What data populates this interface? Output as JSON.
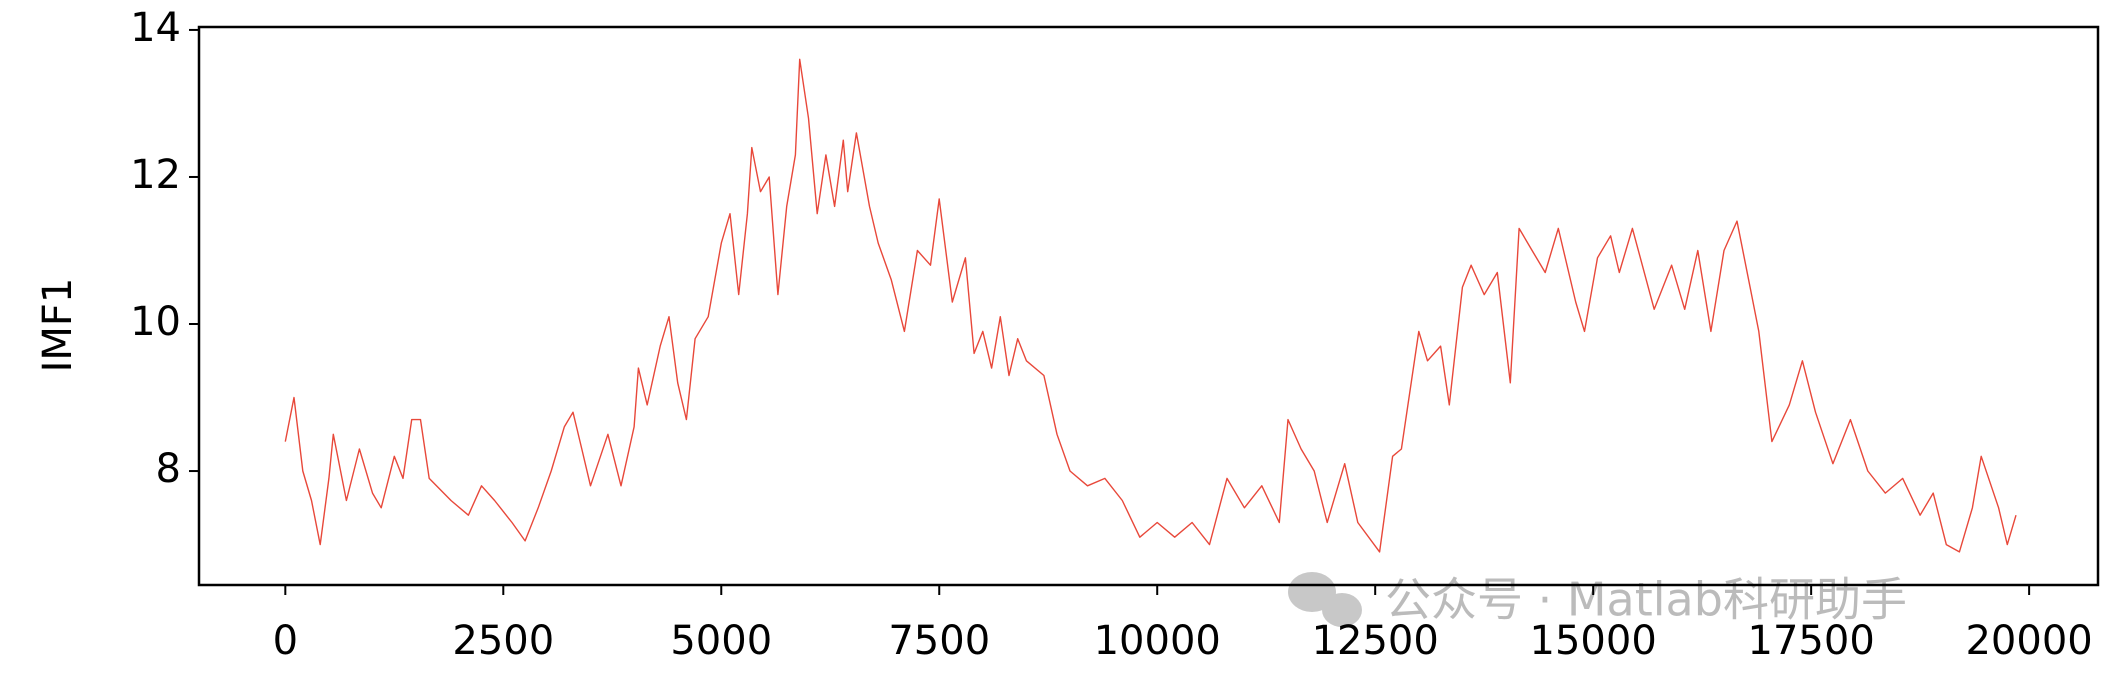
{
  "chart_data": {
    "type": "line",
    "y_label": "IMF1",
    "watermark": "公众号 · Matlab科研助手",
    "color": "#e8483a",
    "xlim": [
      -990,
      20790
    ],
    "ylim": [
      6.45,
      14.04
    ],
    "xticks": [
      0,
      2500,
      5000,
      7500,
      10000,
      12500,
      15000,
      17500,
      20000
    ],
    "yticks": [
      8,
      10,
      12,
      14
    ],
    "x": [
      0,
      100,
      200,
      300,
      400,
      500,
      550,
      700,
      850,
      1000,
      1100,
      1250,
      1350,
      1450,
      1550,
      1650,
      1900,
      2100,
      2250,
      2400,
      2600,
      2750,
      2900,
      3050,
      3200,
      3300,
      3400,
      3500,
      3700,
      3850,
      4000,
      4050,
      4150,
      4300,
      4400,
      4500,
      4600,
      4700,
      4850,
      5000,
      5100,
      5200,
      5300,
      5350,
      5450,
      5550,
      5650,
      5750,
      5850,
      5900,
      6000,
      6100,
      6200,
      6300,
      6400,
      6450,
      6550,
      6700,
      6800,
      6950,
      7100,
      7250,
      7400,
      7500,
      7650,
      7800,
      7900,
      8000,
      8100,
      8200,
      8300,
      8400,
      8500,
      8700,
      8850,
      9000,
      9200,
      9400,
      9600,
      9800,
      10000,
      10200,
      10400,
      10600,
      10800,
      11000,
      11200,
      11400,
      11500,
      11650,
      11800,
      11950,
      12150,
      12300,
      12550,
      12700,
      12800,
      13000,
      13100,
      13250,
      13350,
      13500,
      13600,
      13750,
      13900,
      14050,
      14150,
      14300,
      14450,
      14600,
      14800,
      14900,
      15050,
      15200,
      15300,
      15450,
      15700,
      15900,
      16050,
      16200,
      16350,
      16500,
      16650,
      16800,
      16900,
      17050,
      17250,
      17400,
      17550,
      17750,
      17950,
      18150,
      18350,
      18550,
      18750,
      18900,
      19050,
      19200,
      19350,
      19450,
      19650,
      19750,
      19850
    ],
    "values": [
      8.4,
      9.0,
      8.0,
      7.6,
      7.0,
      7.9,
      8.5,
      7.6,
      8.3,
      7.7,
      7.5,
      8.2,
      7.9,
      8.7,
      8.7,
      7.9,
      7.6,
      7.4,
      7.8,
      7.6,
      7.3,
      7.05,
      7.5,
      8.0,
      8.6,
      8.8,
      8.3,
      7.8,
      8.5,
      7.8,
      8.6,
      9.4,
      8.9,
      9.7,
      10.1,
      9.2,
      8.7,
      9.8,
      10.1,
      11.1,
      11.5,
      10.4,
      11.5,
      12.4,
      11.8,
      12.0,
      10.4,
      11.6,
      12.3,
      13.6,
      12.8,
      11.5,
      12.3,
      11.6,
      12.5,
      11.8,
      12.6,
      11.6,
      11.1,
      10.6,
      9.9,
      11.0,
      10.8,
      11.7,
      10.3,
      10.9,
      9.6,
      9.9,
      9.4,
      10.1,
      9.3,
      9.8,
      9.5,
      9.3,
      8.5,
      8.0,
      7.8,
      7.9,
      7.6,
      7.1,
      7.3,
      7.1,
      7.3,
      7.0,
      7.9,
      7.5,
      7.8,
      7.3,
      8.7,
      8.3,
      8.0,
      7.3,
      8.1,
      7.3,
      6.9,
      8.2,
      8.3,
      9.9,
      9.5,
      9.7,
      8.9,
      10.5,
      10.8,
      10.4,
      10.7,
      9.2,
      11.3,
      11.0,
      10.7,
      11.3,
      10.3,
      9.9,
      10.9,
      11.2,
      10.7,
      11.3,
      10.2,
      10.8,
      10.2,
      11.0,
      9.9,
      11.0,
      11.4,
      10.5,
      9.9,
      8.4,
      8.9,
      9.5,
      8.8,
      8.1,
      8.7,
      8.0,
      7.7,
      7.9,
      7.4,
      7.7,
      7.0,
      6.9,
      7.5,
      8.2,
      7.5,
      7.0,
      7.4
    ]
  }
}
